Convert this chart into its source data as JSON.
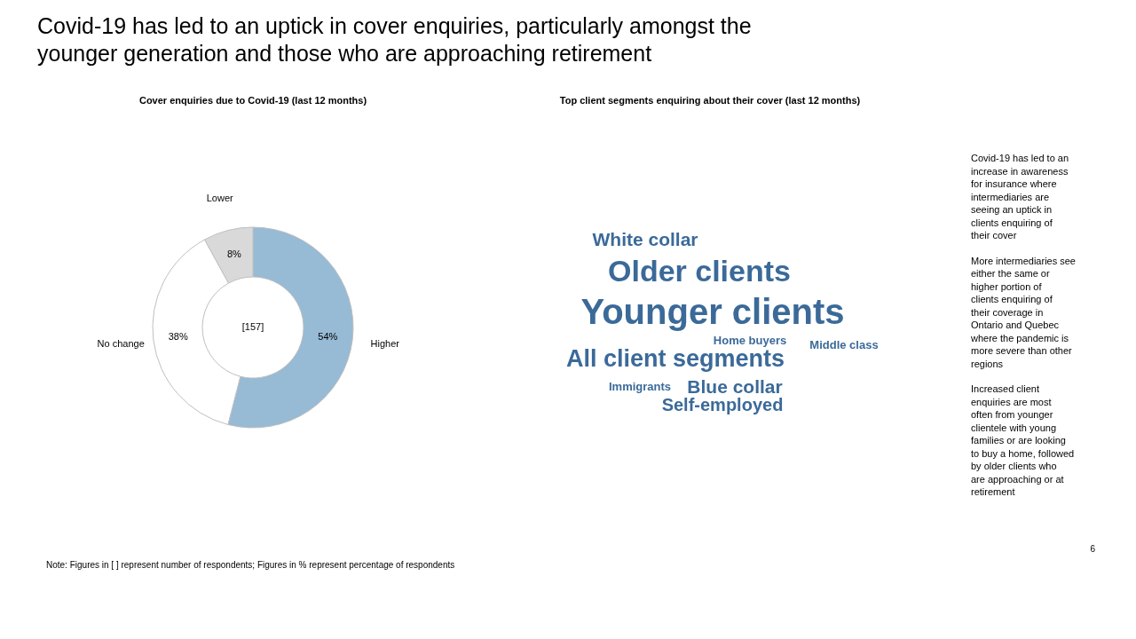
{
  "chart_data": [
    {
      "type": "other",
      "title": "Covid-19 has led to an uptick in cover enquiries, particularly amongst the younger generation and those who are approaching retirement",
      "annotations": [
        "Note: Figures in [ ] represent number of respondents; Figures in % represent percentage of respondents",
        "6"
      ]
    },
    {
      "type": "donut",
      "title": "Cover enquiries due to Covid-19 (last 12 months)",
      "categories": [
        "Higher",
        "No change",
        "Lower"
      ],
      "values": [
        54,
        38,
        8
      ],
      "colors": [
        "#97bad5",
        "#ffffff",
        "#d9d9d9"
      ],
      "value_labels": [
        "54%",
        "38%",
        "8%"
      ],
      "annotations": [
        "[157]"
      ]
    },
    {
      "type": "other",
      "title": "Top client segments enquiring about their cover (last 12 months)",
      "annotations": [
        "White collar",
        "Older clients",
        "Younger clients",
        "Home buyers",
        "Middle class",
        "All client segments",
        "Immigrants",
        "Blue collar",
        "Self-employed"
      ]
    },
    {
      "type": "other",
      "annotations": [
        "Covid-19 has led to an increase in awareness for insurance where intermediaries are seeing an uptick in clients enquiring of their cover",
        "More intermediaries see either the same or higher portion of clients enquiring of their coverage in Ontario and Quebec where the  pandemic is more severe than other regions",
        "Increased client enquiries are most often from younger clientele with young families or are looking to buy a home, followed by older clients who are approaching or at retirement"
      ]
    }
  ]
}
